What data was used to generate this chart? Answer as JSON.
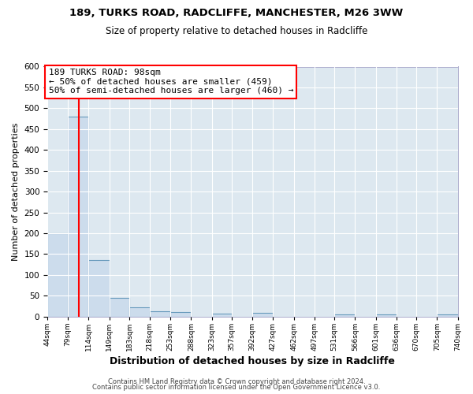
{
  "title1": "189, TURKS ROAD, RADCLIFFE, MANCHESTER, M26 3WW",
  "title2": "Size of property relative to detached houses in Radcliffe",
  "xlabel": "Distribution of detached houses by size in Radcliffe",
  "ylabel": "Number of detached properties",
  "footer1": "Contains HM Land Registry data © Crown copyright and database right 2024.",
  "footer2": "Contains public sector information licensed under the Open Government Licence v3.0.",
  "bin_edges": [
    44,
    79,
    114,
    149,
    183,
    218,
    253,
    288,
    323,
    357,
    392,
    427,
    462,
    497,
    531,
    566,
    601,
    636,
    670,
    705,
    740
  ],
  "bar_heights": [
    200,
    480,
    135,
    45,
    23,
    13,
    10,
    0,
    8,
    0,
    9,
    0,
    0,
    0,
    5,
    0,
    5,
    0,
    0,
    6
  ],
  "bar_color": "#ccdcec",
  "bar_edge_color": "#6699bb",
  "background_color": "#dde8f0",
  "grid_color": "#ffffff",
  "fig_background": "#ffffff",
  "redline_x": 98,
  "annotation_title": "189 TURKS ROAD: 98sqm",
  "annotation_line1": "← 50% of detached houses are smaller (459)",
  "annotation_line2": "50% of semi-detached houses are larger (460) →",
  "ylim": [
    0,
    600
  ],
  "yticks": [
    0,
    50,
    100,
    150,
    200,
    250,
    300,
    350,
    400,
    450,
    500,
    550,
    600
  ],
  "tick_labels": [
    "44sqm",
    "79sqm",
    "114sqm",
    "149sqm",
    "183sqm",
    "218sqm",
    "253sqm",
    "288sqm",
    "323sqm",
    "357sqm",
    "392sqm",
    "427sqm",
    "462sqm",
    "497sqm",
    "531sqm",
    "566sqm",
    "601sqm",
    "636sqm",
    "670sqm",
    "705sqm",
    "740sqm"
  ],
  "title1_fontsize": 9.5,
  "title2_fontsize": 8.5,
  "xlabel_fontsize": 9,
  "ylabel_fontsize": 8,
  "footer_fontsize": 6,
  "annot_fontsize": 8
}
